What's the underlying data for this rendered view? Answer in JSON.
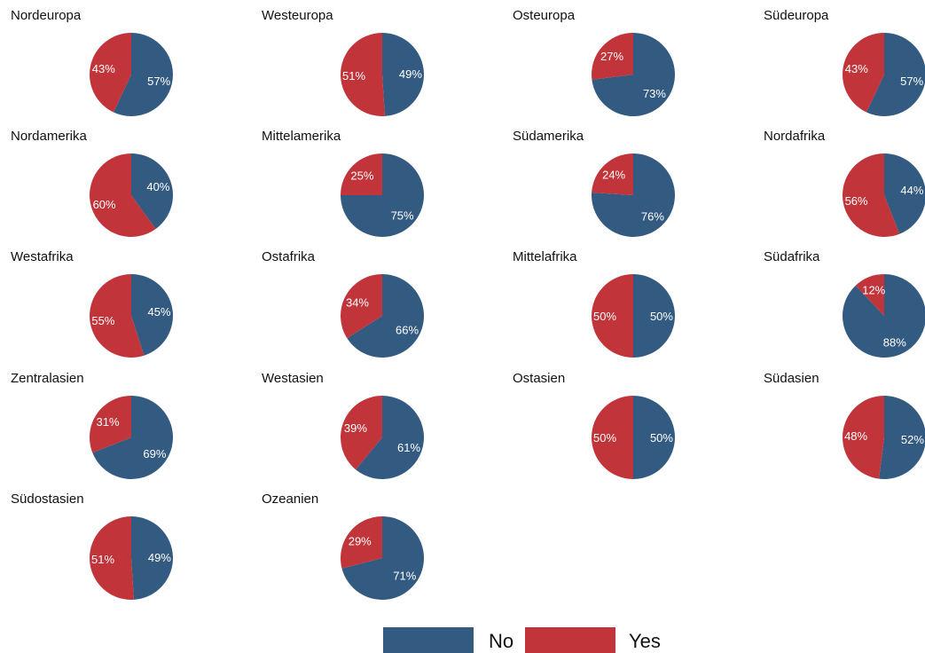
{
  "chart_data": {
    "type": "pie",
    "series_names": [
      "No",
      "Yes"
    ],
    "colors": {
      "No": "#335a80",
      "Yes": "#c1343a"
    },
    "legend": {
      "position": "bottom-center",
      "items": [
        "No",
        "Yes"
      ]
    },
    "panels": [
      {
        "title": "Nordeuropa",
        "no": 57,
        "yes": 43,
        "no_label": "57%",
        "yes_label": "43%"
      },
      {
        "title": "Westeuropa",
        "no": 49,
        "yes": 51,
        "no_label": "49%",
        "yes_label": "51%"
      },
      {
        "title": "Osteuropa",
        "no": 73,
        "yes": 27,
        "no_label": "73%",
        "yes_label": "27%"
      },
      {
        "title": "Südeuropa",
        "no": 57,
        "yes": 43,
        "no_label": "57%",
        "yes_label": "43%"
      },
      {
        "title": "Nordamerika",
        "no": 40,
        "yes": 60,
        "no_label": "40%",
        "yes_label": "60%"
      },
      {
        "title": "Mittelamerika",
        "no": 75,
        "yes": 25,
        "no_label": "75%",
        "yes_label": "25%"
      },
      {
        "title": "Südamerika",
        "no": 76,
        "yes": 24,
        "no_label": "76%",
        "yes_label": "24%"
      },
      {
        "title": "Nordafrika",
        "no": 44,
        "yes": 56,
        "no_label": "44%",
        "yes_label": "56%"
      },
      {
        "title": "Westafrika",
        "no": 45,
        "yes": 55,
        "no_label": "45%",
        "yes_label": "55%"
      },
      {
        "title": "Ostafrika",
        "no": 66,
        "yes": 34,
        "no_label": "66%",
        "yes_label": "34%"
      },
      {
        "title": "Mittelafrika",
        "no": 50,
        "yes": 50,
        "no_label": "50%",
        "yes_label": "50%"
      },
      {
        "title": "Südafrika",
        "no": 88,
        "yes": 12,
        "no_label": "88%",
        "yes_label": "12%"
      },
      {
        "title": "Zentralasien",
        "no": 69,
        "yes": 31,
        "no_label": "69%",
        "yes_label": "31%"
      },
      {
        "title": "Westasien",
        "no": 61,
        "yes": 39,
        "no_label": "61%",
        "yes_label": "39%"
      },
      {
        "title": "Ostasien",
        "no": 50,
        "yes": 50,
        "no_label": "50%",
        "yes_label": "50%"
      },
      {
        "title": "Südasien",
        "no": 52,
        "yes": 48,
        "no_label": "52%",
        "yes_label": "48%"
      },
      {
        "title": "Südostasien",
        "no": 49,
        "yes": 51,
        "no_label": "49%",
        "yes_label": "51%"
      },
      {
        "title": "Ozeanien",
        "no": 71,
        "yes": 29,
        "no_label": "71%",
        "yes_label": "29%"
      }
    ]
  }
}
